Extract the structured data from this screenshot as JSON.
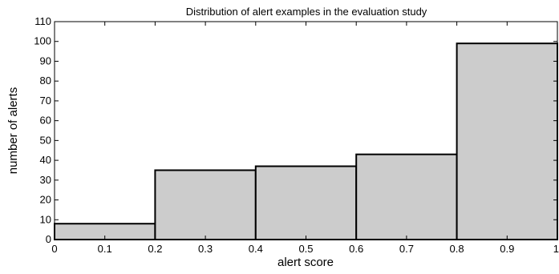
{
  "chart_data": {
    "type": "bar",
    "title": "Distribution of alert examples in the evaluation study",
    "xlabel": "alert score",
    "ylabel": "number of alerts",
    "bin_edges": [
      0,
      0.2,
      0.4,
      0.6,
      0.8,
      1.0
    ],
    "values": [
      8,
      35,
      37,
      43,
      99
    ],
    "xlim": [
      0,
      1
    ],
    "ylim": [
      0,
      110
    ],
    "x_ticks": [
      "0",
      "0.1",
      "0.2",
      "0.3",
      "0.4",
      "0.5",
      "0.6",
      "0.7",
      "0.8",
      "0.9",
      "1"
    ],
    "y_ticks": [
      "0",
      "10",
      "20",
      "30",
      "40",
      "50",
      "60",
      "70",
      "80",
      "90",
      "100",
      "110"
    ],
    "grid": false,
    "bar_color": "#cccccc",
    "edge_color": "#000000"
  }
}
